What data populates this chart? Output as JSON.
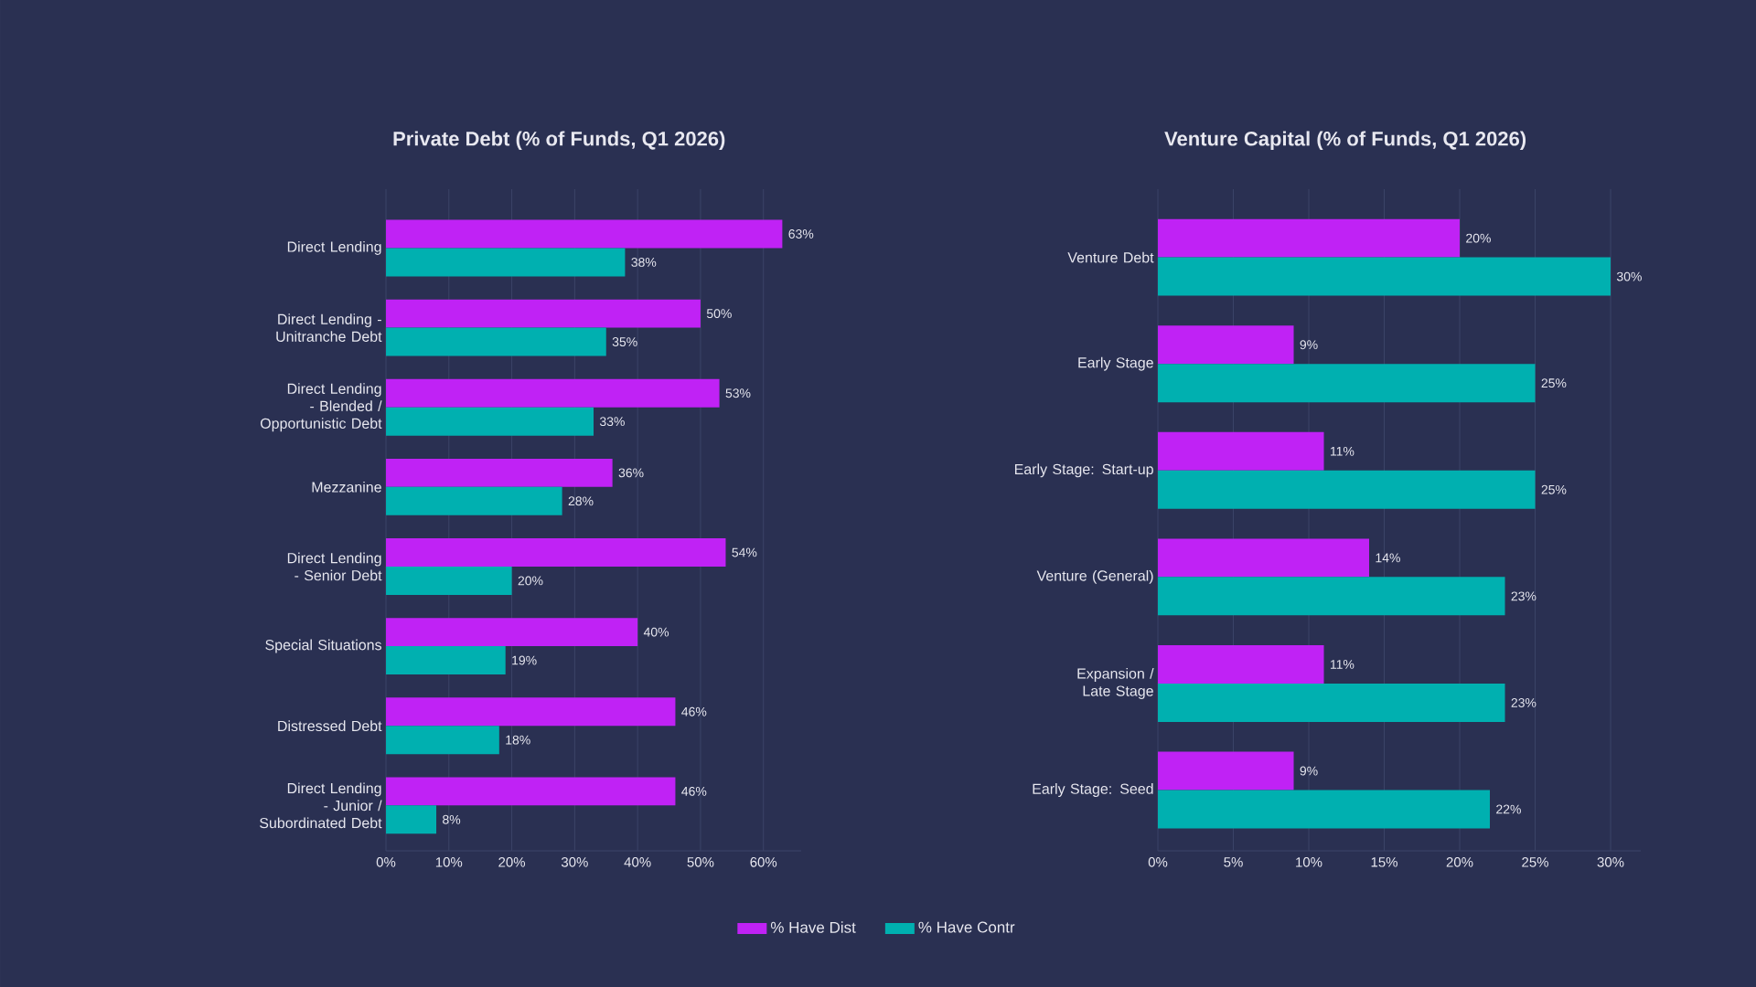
{
  "chart_data": [
    {
      "type": "bar",
      "orientation": "horizontal",
      "title": "Private Debt (% of Funds, Q1 2026)",
      "categories": [
        "Direct Lending",
        "Direct Lending - Unitranche Debt",
        "Direct Lending - Blended / Opportunistic Debt",
        "Mezzanine",
        "Direct Lending - Senior Debt",
        "Special Situations",
        "Distressed Debt",
        "Direct Lending - Junior / Subordinated Debt"
      ],
      "series": [
        {
          "name": "% Have Dist",
          "color": "#c022f5",
          "values": [
            63,
            50,
            53,
            36,
            54,
            40,
            46,
            46
          ],
          "value_labels": [
            "63%",
            "50%",
            "53%",
            "36%",
            "54%",
            "40%",
            "46%",
            "46%"
          ]
        },
        {
          "name": "% Have Contr",
          "color": "#00b0b0",
          "values": [
            38,
            35,
            33,
            28,
            20,
            19,
            18,
            8
          ],
          "value_labels": [
            "38%",
            "35%",
            "33%",
            "28%",
            "20%",
            "19%",
            "18%",
            "8%"
          ]
        }
      ],
      "xlim": [
        0,
        66
      ],
      "xticks": [
        {
          "value": 0,
          "label": "0%"
        },
        {
          "value": 10,
          "label": "10%"
        },
        {
          "value": 20,
          "label": "20%"
        },
        {
          "value": 30,
          "label": "30%"
        },
        {
          "value": 40,
          "label": "40%"
        },
        {
          "value": 50,
          "label": "50%"
        },
        {
          "value": 60,
          "label": "60%"
        }
      ],
      "grid": "x",
      "legend": "bottom"
    },
    {
      "type": "bar",
      "orientation": "horizontal",
      "title": "Venture Capital (% of Funds, Q1 2026)",
      "categories": [
        "Venture Debt",
        "Early Stage",
        "Early Stage: Start-up",
        "Venture (General)",
        "Expansion / Late Stage",
        "Early Stage: Seed"
      ],
      "series": [
        {
          "color": "#c022f5",
          "values": [
            20,
            9,
            11,
            14,
            11,
            9
          ],
          "value_labels": [
            "20%",
            "9%",
            "11%",
            "14%",
            "11%",
            "9%"
          ]
        },
        {
          "color": "#00b0b0",
          "values": [
            30,
            25,
            25,
            23,
            23,
            22
          ],
          "value_labels": [
            "30%",
            "25%",
            "25%",
            "23%",
            "23%",
            "22%"
          ]
        }
      ],
      "xlim": [
        0,
        32
      ],
      "xticks": [
        {
          "value": 0,
          "label": "0%"
        },
        {
          "value": 5,
          "label": "5%"
        },
        {
          "value": 10,
          "label": "10%"
        },
        {
          "value": 15,
          "label": "15%"
        },
        {
          "value": 20,
          "label": "20%"
        },
        {
          "value": 25,
          "label": "25%"
        },
        {
          "value": 30,
          "label": "30%"
        }
      ],
      "grid": "x"
    }
  ]
}
